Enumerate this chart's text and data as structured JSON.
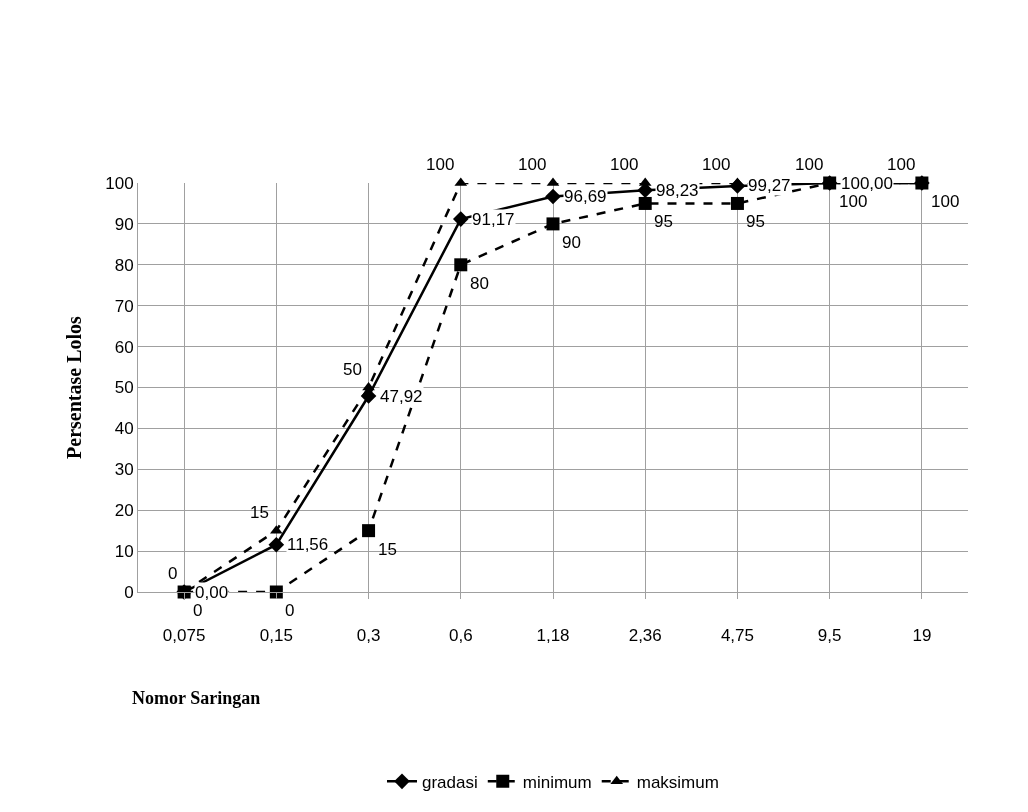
{
  "chart_data": {
    "type": "line",
    "xlabel": "Nomor Saringan",
    "ylabel": "Persentase Lolos",
    "categories": [
      "0,075",
      "0,15",
      "0,3",
      "0,6",
      "1,18",
      "2,36",
      "4,75",
      "9,5",
      "19"
    ],
    "series": [
      {
        "name": "gradasi",
        "color": "#000000",
        "marker": "diamond",
        "line_style": "solid",
        "values": [
          0,
          11.56,
          47.92,
          91.17,
          96.69,
          98.23,
          99.27,
          100,
          100
        ],
        "value_labels": [
          "0,00",
          "11,56",
          "47,92",
          "91,17",
          "96,69",
          "98,23",
          "99,27",
          "100,00",
          null
        ]
      },
      {
        "name": "minimum",
        "color": "#000000",
        "marker": "square",
        "line_style": "dashed",
        "values": [
          0,
          0,
          15,
          80,
          90,
          95,
          95,
          100,
          100
        ],
        "value_labels": [
          "0",
          "0",
          "15",
          "80",
          "90",
          "95",
          "95",
          "100",
          "100"
        ]
      },
      {
        "name": "maksimum",
        "color": "#000000",
        "marker": "triangle",
        "line_style": "dashed",
        "values": [
          0,
          15,
          50,
          100,
          100,
          100,
          100,
          100,
          100
        ],
        "value_labels": [
          "0",
          "15",
          "50",
          "100",
          "100",
          "100",
          "100",
          "100",
          "100"
        ]
      }
    ],
    "ylim": [
      0,
      100
    ],
    "yticks": [
      0,
      10,
      20,
      30,
      40,
      50,
      60,
      70,
      80,
      90,
      100
    ],
    "grid": true,
    "legend": "bottom"
  }
}
